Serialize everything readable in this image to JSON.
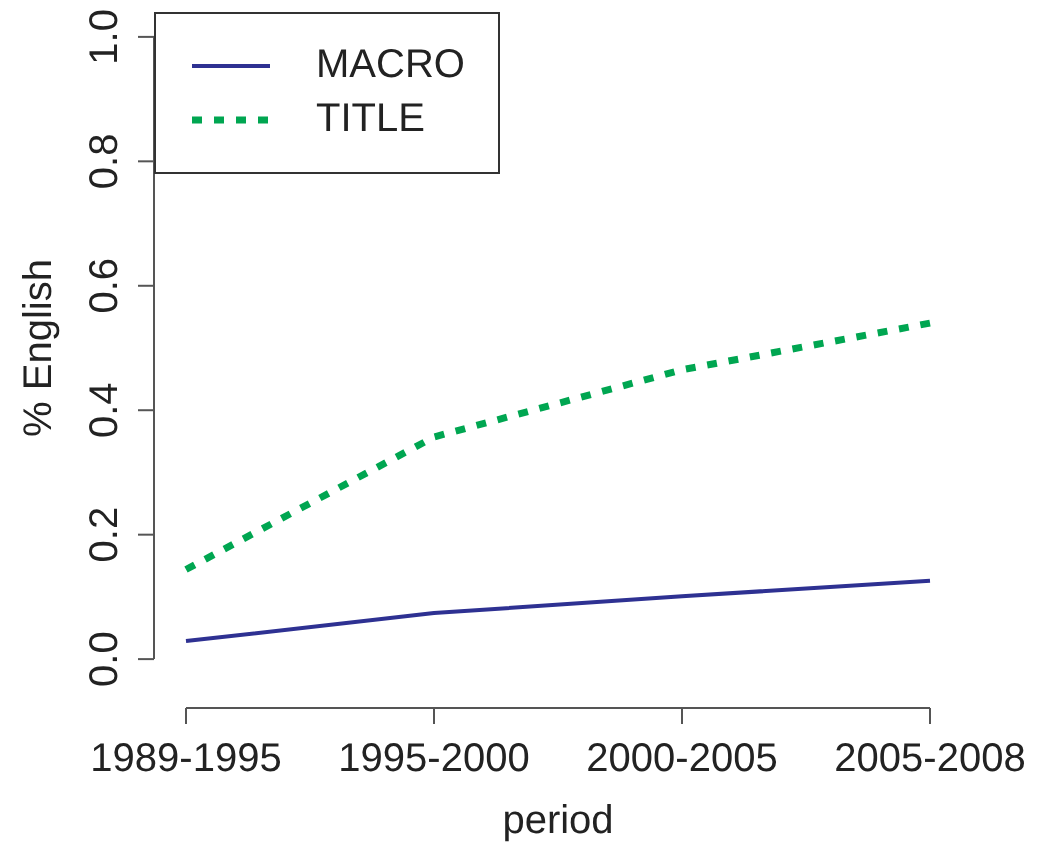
{
  "chart_data": {
    "type": "line",
    "xlabel": "period",
    "ylabel": "% English",
    "categories": [
      "1989-1995",
      "1995-2000",
      "2000-2005",
      "2005-2008"
    ],
    "series": [
      {
        "name": "MACRO",
        "color": "#2e3192",
        "values": [
          0.029,
          0.074,
          0.101,
          0.126
        ],
        "line_style": "solid"
      },
      {
        "name": "TITLE",
        "color": "#00a651",
        "values": [
          0.144,
          0.357,
          0.465,
          0.54
        ],
        "line_style": "dotted"
      }
    ],
    "ylim": [
      0,
      1
    ],
    "yticks": [
      {
        "value": 0,
        "label": "0.0"
      },
      {
        "value": 0.2,
        "label": "0.2"
      },
      {
        "value": 0.4,
        "label": "0.4"
      },
      {
        "value": 0.6,
        "label": "0.6"
      },
      {
        "value": 0.8,
        "label": "0.8"
      },
      {
        "value": 1,
        "label": "1.0"
      }
    ],
    "legend": "top left",
    "marker": "none"
  }
}
